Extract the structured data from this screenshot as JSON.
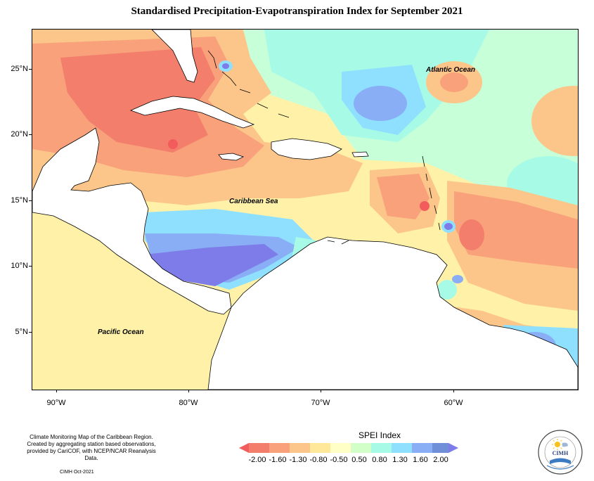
{
  "title": "Standardised Precipitation-Evapotranspiration Index for September 2021",
  "map": {
    "ocean_labels": {
      "atlantic": "Atlantic Ocean",
      "caribbean": "Caribbean Sea",
      "pacific": "Pacific Ocean"
    },
    "lat_labels": [
      "25°N",
      "20°N",
      "15°N",
      "10°N",
      "5°N"
    ],
    "lon_labels": [
      "90°W",
      "80°W",
      "70°W",
      "60°W"
    ]
  },
  "legend": {
    "title": "SPEI Index",
    "ticks": [
      "-2.00",
      "-1.60",
      "-1.30",
      "-0.80",
      "-0.50",
      "0.50",
      "0.80",
      "1.30",
      "1.60",
      "2.00"
    ],
    "colors": [
      "#f25c5c",
      "#f9a17a",
      "#fcc68a",
      "#ffe89a",
      "#ffffc6",
      "#d2ffc8",
      "#a7fbe6",
      "#8fe0ff",
      "#8aaef5",
      "#7d7ce8"
    ]
  },
  "credits": {
    "lines": [
      "Climate Monitoring Map of the Caribbean Region.",
      "Created by aggregating station based observations,",
      "provided by CariCOF, with NCEP/NCAR Reanalysis Data."
    ],
    "date": "CIMH Oct-2021"
  },
  "logo": {
    "text": "CIMH",
    "icon": "sun-icon"
  }
}
